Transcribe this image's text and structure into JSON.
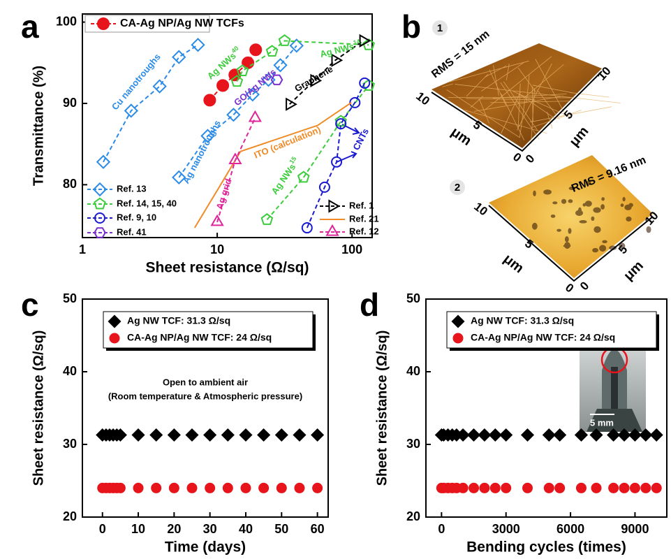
{
  "chart_data": [
    {
      "type": "line",
      "panel_label": "a",
      "log_x": true,
      "x_label": "Sheet resistance (Ω/sq)",
      "y_label": "Transmittance (%)",
      "xlim": [
        1,
        141
      ],
      "ylim": [
        73.5,
        101
      ],
      "xticks": [
        1,
        10,
        100
      ],
      "yticks": [
        80,
        90,
        100
      ],
      "series": [
        {
          "name": "CA-Ag NP/Ag NW TCFs",
          "color": "#e8141b",
          "marker": "circle",
          "filled": true,
          "line_style": "dashed",
          "x": [
            8.8,
            11.0,
            13.5,
            16.9,
            19.3
          ],
          "values": [
            90.4,
            92.2,
            93.5,
            95.0,
            96.6
          ]
        },
        {
          "name": "Ref. 13",
          "color": "#2b8be6",
          "marker": "diamond",
          "filled": false,
          "line_style": "dashed",
          "x": [
            1.43,
            2.3,
            3.74,
            5.2,
            7.2,
            null,
            5.2,
            8.5,
            13.2,
            18.3,
            24.0,
            29.4,
            38.8
          ],
          "values": [
            82.8,
            89.1,
            92.1,
            95.7,
            97.2,
            null,
            80.9,
            86.0,
            88.6,
            91.1,
            92.9,
            94.7,
            97.1
          ]
        },
        {
          "name": "Ref. 14, 15, 40",
          "color": "#3ccc3c",
          "marker": "pentagon",
          "filled": false,
          "line_style": "dashed",
          "x": [
            14.0,
            15.4,
            25.5,
            31.6,
            133,
            null,
            23.4,
            43.7,
            82.6,
            133
          ],
          "values": [
            92.7,
            94.0,
            96.4,
            97.7,
            97.2,
            null,
            75.7,
            80.9,
            87.8,
            92.2
          ]
        },
        {
          "name": "Ref. 9, 10",
          "color": "#1a1ad0",
          "marker": "circle",
          "filled": false,
          "line_style": "dashed",
          "x": [
            46.4,
            62.6,
            76.8,
            82.6,
            105,
            124
          ],
          "values": [
            74.7,
            79.7,
            82.8,
            87.5,
            90.1,
            92.5
          ]
        },
        {
          "name": "Ref. 41",
          "color": "#7b2fcf",
          "marker": "hexagon",
          "filled": false,
          "line_style": "dashed",
          "x": [
            27.7
          ],
          "values": [
            92.9
          ]
        },
        {
          "name": "Ref. 1",
          "color": "#000000",
          "marker": "triangle-right",
          "filled": false,
          "line_style": "dashed",
          "x": [
            34.4,
            52.4,
            75,
            121
          ],
          "values": [
            89.9,
            92.8,
            95.3,
            97.7
          ]
        },
        {
          "name": "Ref. 21",
          "color": "#f08a24",
          "marker": "none",
          "filled": false,
          "line_style": "solid",
          "x": [
            6.8,
            10.6,
            14.9,
            55.6,
            98.8
          ],
          "values": [
            74.7,
            80.0,
            84.1,
            87.3,
            90.1
          ]
        },
        {
          "name": "Ref. 12",
          "color": "#e0259a",
          "marker": "triangle-up",
          "filled": false,
          "line_style": "dashed",
          "x": [
            10,
            13.6,
            19.1
          ],
          "values": [
            75.4,
            83.0,
            88.2
          ]
        }
      ],
      "annotations": [
        {
          "text": "Cu nanotroughs",
          "color": "#2b8be6"
        },
        {
          "text": "Ag nanotroughs",
          "color": "#2b8be6"
        },
        {
          "text": "Ag NWs",
          "sup": "40",
          "color": "#3ccc3c"
        },
        {
          "text": "Ag NWs",
          "sup": "14",
          "color": "#3ccc3c"
        },
        {
          "text": "Ag NWs",
          "sup": "15",
          "color": "#3ccc3c"
        },
        {
          "text": "GO/Ag NWs",
          "color": "#7b2fcf"
        },
        {
          "text": "Graphene",
          "color": "#000000"
        },
        {
          "text": "ITO (calculation)",
          "color": "#f08a24"
        },
        {
          "text": "Ag grid",
          "color": "#e0259a"
        },
        {
          "text": "CNTs",
          "color": "#1a1ad0"
        }
      ]
    },
    {
      "type": "scatter",
      "panel_label": "c",
      "x_label": "Time (days)",
      "y_label": "Sheet resistance (Ω/sq)",
      "xlim": [
        -5.6,
        63
      ],
      "ylim": [
        20,
        50
      ],
      "xticks": [
        0,
        10,
        20,
        30,
        40,
        50,
        60
      ],
      "yticks": [
        20,
        30,
        40,
        50
      ],
      "x": [
        0,
        1,
        2,
        3,
        4,
        5,
        10,
        15,
        20,
        25,
        30,
        35,
        40,
        45,
        50,
        55,
        60
      ],
      "series": [
        {
          "name": "Ag NW TCF: 31.3 Ω/sq",
          "color": "#000000",
          "marker": "diamond",
          "values": [
            31.3,
            31.3,
            31.3,
            31.3,
            31.3,
            31.3,
            31.3,
            31.3,
            31.3,
            31.3,
            31.3,
            31.3,
            31.3,
            31.3,
            31.3,
            31.3,
            31.3
          ]
        },
        {
          "name": "CA-Ag NP/Ag NW TCF: 24 Ω/sq",
          "color": "#e8141b",
          "marker": "circle",
          "values": [
            24,
            24,
            24,
            24,
            24,
            24,
            24,
            24,
            24,
            24,
            24,
            24,
            24,
            24,
            24,
            24,
            24
          ]
        }
      ],
      "annotations": [
        "Open to ambient air",
        "(Room temperature & Atmospheric pressure)"
      ]
    },
    {
      "type": "scatter",
      "panel_label": "d",
      "x_label": "Bending cycles (times)",
      "y_label": "Sheet resistance (Ω/sq)",
      "xlim": [
        -726,
        10480
      ],
      "ylim": [
        20,
        50
      ],
      "xticks": [
        0,
        3000,
        6000,
        9000
      ],
      "yticks": [
        20,
        30,
        40,
        50
      ],
      "x": [
        0,
        100,
        300,
        500,
        700,
        1000,
        1500,
        2000,
        2500,
        3000,
        4000,
        5000,
        5500,
        6500,
        7200,
        8000,
        8500,
        9000,
        9500,
        10000
      ],
      "series": [
        {
          "name": "Ag NW TCF: 31.3 Ω/sq",
          "color": "#000000",
          "marker": "diamond",
          "values": [
            31.3,
            31.3,
            31.3,
            31.3,
            31.3,
            31.3,
            31.3,
            31.3,
            31.3,
            31.3,
            31.3,
            31.3,
            31.3,
            31.3,
            31.3,
            31.3,
            31.3,
            31.3,
            31.3,
            31.3
          ]
        },
        {
          "name": "CA-Ag NP/Ag NW TCF: 24 Ω/sq",
          "color": "#e8141b",
          "marker": "circle",
          "values": [
            24,
            24,
            24,
            24,
            24,
            24,
            24,
            24,
            24,
            24,
            24,
            24,
            24,
            24,
            24,
            24,
            24,
            24,
            24,
            24
          ]
        }
      ],
      "inset_label": "5 mm"
    }
  ],
  "panel_b": {
    "label": "b",
    "images": [
      {
        "number": "1",
        "rms": "RMS = 15 nm",
        "left_ticks": [
          "10",
          "5",
          "0"
        ],
        "right_ticks": [
          "0",
          "5",
          "10"
        ],
        "unit": "μm"
      },
      {
        "number": "2",
        "rms": "RMS = 9.16 nm",
        "left_ticks": [
          "10",
          "5",
          "0"
        ],
        "right_ticks": [
          "0",
          "5",
          "10"
        ],
        "unit": "μm"
      }
    ]
  }
}
